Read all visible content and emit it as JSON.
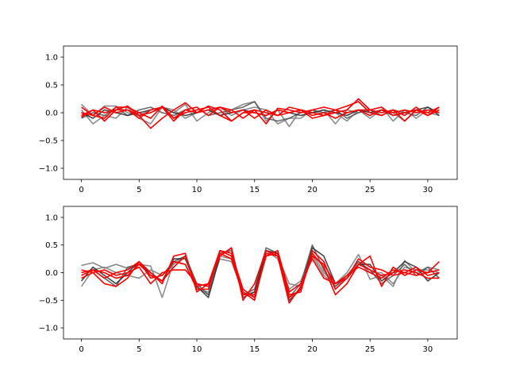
{
  "chart_data": [
    {
      "type": "line",
      "title": "",
      "xlabel": "",
      "ylabel": "",
      "xlim": [
        -1.55,
        32.55
      ],
      "ylim": [
        -1.2,
        1.2
      ],
      "xticks": [
        0,
        5,
        10,
        15,
        20,
        25,
        30
      ],
      "yticks": [
        -1.0,
        -0.5,
        0.0,
        0.5,
        1.0
      ],
      "x": [
        0,
        1,
        2,
        3,
        4,
        5,
        6,
        7,
        8,
        9,
        10,
        11,
        12,
        13,
        14,
        15,
        16,
        17,
        18,
        19,
        20,
        21,
        22,
        23,
        24,
        25,
        26,
        27,
        28,
        29,
        30,
        31
      ],
      "series": [
        {
          "color": "#808080",
          "values": [
            0.15,
            -0.05,
            0.12,
            0.12,
            0.0,
            -0.05,
            0.05,
            0.1,
            0.05,
            -0.1,
            0.0,
            0.05,
            -0.05,
            0.05,
            0.15,
            0.2,
            -0.15,
            0.05,
            -0.25,
            0.05,
            0.0,
            0.05,
            -0.2,
            0.05,
            0.0,
            0.05,
            0.1,
            -0.15,
            0.05,
            -0.1,
            0.05,
            0.0
          ]
        },
        {
          "color": "#808080",
          "values": [
            0.05,
            -0.2,
            -0.05,
            -0.1,
            0.1,
            -0.1,
            -0.2,
            0.1,
            0.0,
            0.15,
            -0.15,
            0.0,
            0.1,
            -0.05,
            0.05,
            0.1,
            0.05,
            -0.2,
            -0.1,
            -0.1,
            0.05,
            -0.05,
            0.0,
            -0.15,
            0.05,
            -0.1,
            0.05,
            0.0,
            -0.15,
            0.05,
            0.0,
            -0.05
          ]
        },
        {
          "color": "#595959",
          "values": [
            -0.1,
            0.0,
            -0.05,
            0.1,
            -0.05,
            0.05,
            0.1,
            0.0,
            -0.05,
            0.05,
            0.1,
            -0.05,
            0.0,
            0.05,
            0.1,
            0.2,
            -0.1,
            -0.15,
            -0.1,
            0.0,
            0.05,
            0.0,
            0.05,
            -0.1,
            0.0,
            0.05,
            -0.05,
            0.05,
            0.0,
            -0.05,
            0.1,
            0.0
          ]
        },
        {
          "color": "#333333",
          "values": [
            0.0,
            -0.1,
            0.05,
            0.0,
            -0.05,
            0.0,
            0.05,
            0.1,
            0.0,
            -0.05,
            0.0,
            0.05,
            -0.05,
            0.0,
            0.05,
            0.0,
            -0.05,
            0.05,
            0.0,
            -0.05,
            0.0,
            0.05,
            0.0,
            -0.05,
            0.05,
            0.0,
            0.05,
            -0.05,
            0.0,
            0.05,
            0.1,
            -0.05
          ]
        },
        {
          "color": "#ff0000",
          "values": [
            -0.05,
            0.05,
            -0.15,
            0.05,
            0.12,
            -0.05,
            -0.28,
            -0.1,
            0.05,
            0.18,
            0.0,
            0.12,
            0.05,
            -0.15,
            0.0,
            0.05,
            -0.2,
            0.08,
            0.05,
            0.0,
            0.05,
            0.1,
            0.05,
            0.12,
            0.2,
            0.0,
            -0.05,
            0.05,
            -0.15,
            0.05,
            0.0,
            0.1
          ]
        },
        {
          "color": "#ff0000",
          "values": [
            0.1,
            -0.05,
            -0.1,
            0.1,
            0.1,
            0.0,
            -0.1,
            0.12,
            -0.1,
            0.05,
            0.1,
            -0.05,
            0.1,
            0.05,
            -0.1,
            0.05,
            0.0,
            -0.05,
            0.1,
            0.05,
            -0.1,
            -0.05,
            0.0,
            0.05,
            0.25,
            0.05,
            0.0,
            0.05,
            -0.05,
            0.1,
            -0.05,
            0.1
          ]
        },
        {
          "color": "#ff0000",
          "values": [
            -0.08,
            0.05,
            0.0,
            0.05,
            0.05,
            -0.1,
            0.05,
            0.1,
            -0.1,
            0.0,
            0.05,
            0.1,
            -0.05,
            -0.15,
            0.0,
            0.0,
            -0.05,
            0.05,
            0.0,
            0.05,
            -0.05,
            0.0,
            -0.1,
            0.0,
            0.05,
            0.05,
            0.1,
            -0.05,
            0.0,
            0.05,
            -0.05,
            0.05
          ]
        },
        {
          "color": "#ff0000",
          "values": [
            0.0,
            -0.05,
            0.1,
            0.0,
            0.05,
            -0.05,
            0.0,
            0.1,
            -0.15,
            0.05,
            0.0,
            0.05,
            0.1,
            0.0,
            0.05,
            -0.1,
            0.05,
            -0.05,
            0.0,
            0.05,
            0.0,
            -0.05,
            0.05,
            0.0,
            0.05,
            -0.05,
            0.05,
            0.0,
            0.05,
            0.0,
            0.05,
            0.0
          ]
        }
      ]
    },
    {
      "type": "line",
      "title": "",
      "xlabel": "",
      "ylabel": "",
      "xlim": [
        -1.55,
        32.55
      ],
      "ylim": [
        -1.2,
        1.2
      ],
      "xticks": [
        0,
        5,
        10,
        15,
        20,
        25,
        30
      ],
      "yticks": [
        -1.0,
        -0.5,
        0.0,
        0.5,
        1.0
      ],
      "x": [
        0,
        1,
        2,
        3,
        4,
        5,
        6,
        7,
        8,
        9,
        10,
        11,
        12,
        13,
        14,
        15,
        16,
        17,
        18,
        19,
        20,
        21,
        22,
        23,
        24,
        25,
        26,
        27,
        28,
        29,
        30,
        31
      ],
      "series": [
        {
          "color": "#808080",
          "values": [
            0.13,
            0.18,
            0.08,
            0.15,
            0.08,
            0.15,
            0.12,
            -0.45,
            0.2,
            0.15,
            -0.25,
            -0.4,
            0.3,
            0.25,
            -0.4,
            -0.35,
            0.4,
            0.25,
            -0.3,
            -0.15,
            0.35,
            0.0,
            -0.2,
            0.0,
            0.33,
            -0.12,
            -0.05,
            -0.25,
            0.22,
            0.0,
            0.1,
            0.05
          ]
        },
        {
          "color": "#808080",
          "values": [
            -0.25,
            0.05,
            0.1,
            0.0,
            -0.05,
            -0.1,
            0.05,
            -0.05,
            0.15,
            0.3,
            -0.3,
            -0.35,
            0.25,
            0.2,
            -0.35,
            -0.45,
            0.35,
            0.3,
            -0.2,
            -0.25,
            0.3,
            -0.05,
            -0.25,
            -0.1,
            0.2,
            0.0,
            0.0,
            -0.2,
            0.1,
            0.05,
            0.05,
            0.0
          ]
        },
        {
          "color": "#595959",
          "values": [
            0.0,
            0.05,
            -0.1,
            -0.25,
            0.1,
            0.15,
            0.0,
            -0.15,
            0.2,
            0.3,
            -0.2,
            -0.4,
            0.35,
            0.4,
            -0.4,
            -0.3,
            0.45,
            0.35,
            -0.45,
            -0.2,
            0.5,
            0.05,
            -0.25,
            -0.05,
            0.2,
            0.05,
            -0.2,
            -0.05,
            0.15,
            -0.05,
            0.1,
            -0.1
          ]
        },
        {
          "color": "#333333",
          "values": [
            -0.15,
            0.1,
            -0.05,
            -0.2,
            0.0,
            0.2,
            -0.05,
            -0.15,
            0.25,
            0.25,
            -0.25,
            -0.45,
            0.3,
            0.45,
            -0.45,
            -0.35,
            0.4,
            0.35,
            -0.5,
            -0.3,
            0.45,
            0.3,
            -0.2,
            -0.1,
            0.15,
            0.15,
            -0.15,
            0.0,
            0.2,
            0.1,
            -0.15,
            0.0
          ]
        },
        {
          "color": "#ff0000",
          "values": [
            0.05,
            0.0,
            -0.2,
            -0.25,
            -0.1,
            0.2,
            0.0,
            -0.2,
            0.3,
            0.35,
            -0.35,
            -0.2,
            0.3,
            0.45,
            -0.5,
            -0.2,
            0.4,
            0.3,
            -0.4,
            -0.35,
            0.4,
            0.2,
            -0.3,
            -0.1,
            0.25,
            0.1,
            0.05,
            -0.05,
            0.0,
            0.1,
            -0.05,
            0.0
          ]
        },
        {
          "color": "#ff0000",
          "values": [
            -0.05,
            0.05,
            0.0,
            -0.1,
            -0.05,
            0.15,
            -0.05,
            -0.15,
            0.1,
            0.3,
            -0.25,
            -0.2,
            0.4,
            0.3,
            -0.35,
            -0.5,
            0.35,
            0.3,
            -0.55,
            -0.25,
            0.35,
            0.1,
            -0.4,
            -0.2,
            0.15,
            0.3,
            -0.25,
            0.1,
            -0.05,
            0.05,
            0.0,
            0.2
          ]
        },
        {
          "color": "#ff0000",
          "values": [
            0.0,
            0.05,
            -0.1,
            0.0,
            0.05,
            0.2,
            -0.1,
            -0.05,
            0.2,
            0.15,
            -0.3,
            -0.3,
            0.4,
            0.35,
            -0.3,
            -0.45,
            0.3,
            0.35,
            -0.45,
            -0.3,
            0.3,
            0.15,
            -0.2,
            -0.1,
            0.15,
            0.05,
            -0.05,
            0.0,
            0.05,
            0.0,
            -0.1,
            -0.1
          ]
        },
        {
          "color": "#ff0000",
          "values": [
            -0.1,
            0.0,
            0.05,
            -0.05,
            0.0,
            0.1,
            -0.2,
            0.0,
            0.05,
            0.05,
            -0.2,
            -0.25,
            0.35,
            0.25,
            -0.4,
            -0.4,
            0.3,
            0.4,
            -0.35,
            -0.2,
            0.25,
            -0.1,
            -0.2,
            -0.05,
            0.1,
            0.0,
            -0.1,
            0.05,
            0.0,
            -0.05,
            0.0,
            0.05
          ]
        }
      ]
    }
  ]
}
